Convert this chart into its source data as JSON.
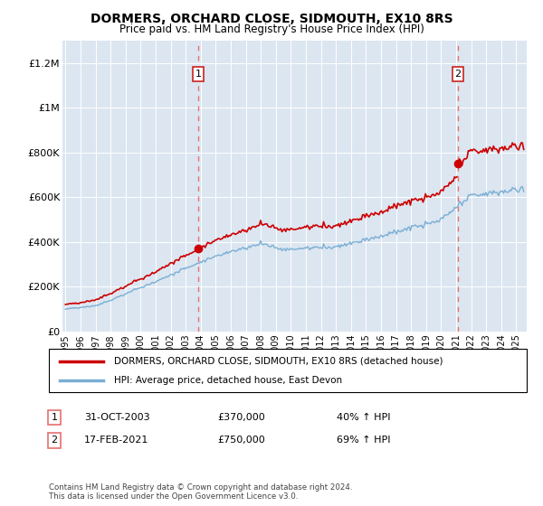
{
  "title": "DORMERS, ORCHARD CLOSE, SIDMOUTH, EX10 8RS",
  "subtitle": "Price paid vs. HM Land Registry's House Price Index (HPI)",
  "ylim": [
    0,
    1300000
  ],
  "yticks": [
    0,
    200000,
    400000,
    600000,
    800000,
    1000000,
    1200000
  ],
  "ytick_labels": [
    "£0",
    "£200K",
    "£400K",
    "£600K",
    "£800K",
    "£1M",
    "£1.2M"
  ],
  "x_start_year": 1995,
  "x_end_year": 2025,
  "transaction1": {
    "date": "31-OCT-2003",
    "price": 370000,
    "hpi_pct": "40%",
    "label": "1"
  },
  "transaction2": {
    "date": "17-FEB-2021",
    "price": 750000,
    "hpi_pct": "69%",
    "label": "2"
  },
  "transaction1_x": 2003.83,
  "transaction2_x": 2021.12,
  "legend_line1": "DORMERS, ORCHARD CLOSE, SIDMOUTH, EX10 8RS (detached house)",
  "legend_line2": "HPI: Average price, detached house, East Devon",
  "footer": "Contains HM Land Registry data © Crown copyright and database right 2024.\nThis data is licensed under the Open Government Licence v3.0.",
  "red_color": "#cc0000",
  "blue_color": "#7bafd4",
  "bg_color": "#dce6f1",
  "vline_color": "#e87070",
  "label_box_color": "#cc2222"
}
